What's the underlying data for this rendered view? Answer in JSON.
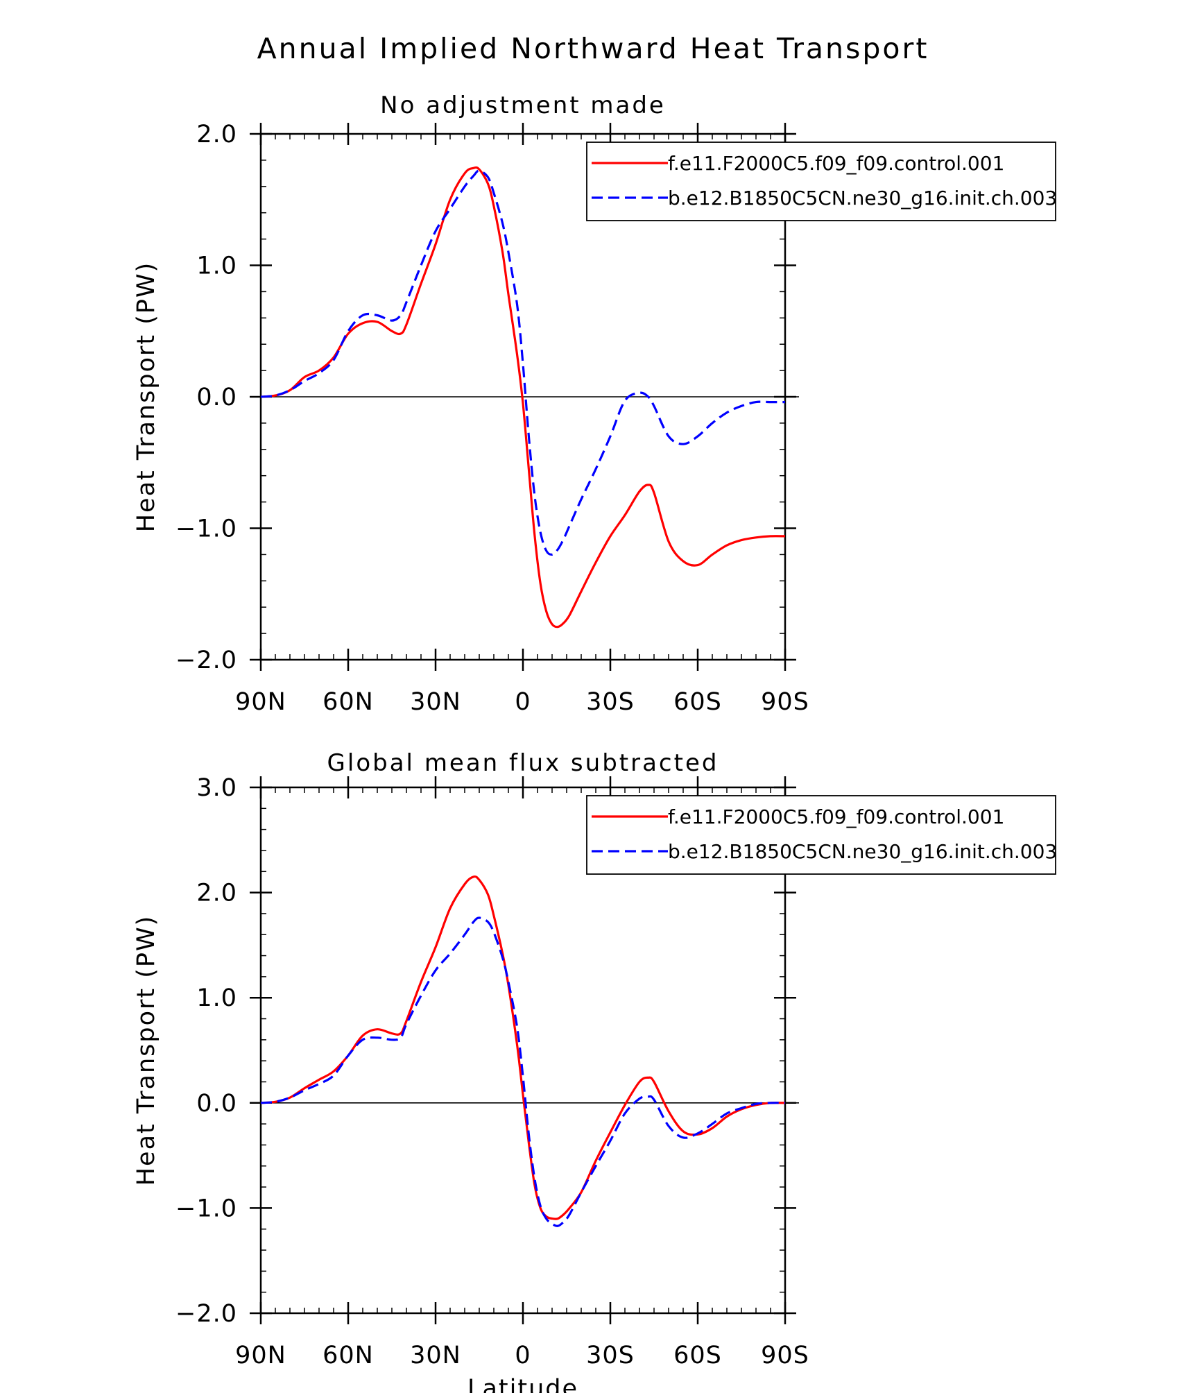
{
  "figure": {
    "title": "Annual Implied Northward Heat Transport"
  },
  "chart_data": [
    {
      "type": "line",
      "title": "No adjustment made",
      "xlabel": "",
      "ylabel": "Heat Transport (PW)",
      "xlim": [
        90,
        -90
      ],
      "ylim": [
        -2.0,
        2.0
      ],
      "x_ticks": [
        90,
        60,
        30,
        0,
        -30,
        -60,
        -90
      ],
      "x_tick_labels": [
        "90N",
        "60N",
        "30N",
        "0",
        "30S",
        "60S",
        "90S"
      ],
      "y_ticks": [
        -2.0,
        -1.0,
        0.0,
        1.0,
        2.0
      ],
      "y_tick_labels": [
        "−2.0",
        "−1.0",
        "0.0",
        "1.0",
        "2.0"
      ],
      "zero_line": true,
      "grid": false,
      "legend": "top-right",
      "series": [
        {
          "name": "f.e11.F2000C5.f09_f09.control.001",
          "color": "#ff0000",
          "dash": "solid",
          "x": [
            90,
            85,
            80,
            75,
            70,
            65,
            60,
            55,
            50,
            45,
            42,
            40,
            35,
            30,
            25,
            20,
            17,
            15,
            12,
            10,
            7,
            5,
            2,
            0,
            -2,
            -4,
            -6,
            -8,
            -10,
            -12,
            -14,
            -16,
            -20,
            -25,
            -30,
            -35,
            -40,
            -43,
            -45,
            -50,
            -55,
            -60,
            -65,
            -70,
            -75,
            -80,
            -85,
            -90
          ],
          "y": [
            0.0,
            0.01,
            0.05,
            0.15,
            0.2,
            0.3,
            0.48,
            0.56,
            0.57,
            0.5,
            0.48,
            0.55,
            0.86,
            1.16,
            1.5,
            1.7,
            1.74,
            1.73,
            1.62,
            1.45,
            1.1,
            0.78,
            0.32,
            -0.05,
            -0.55,
            -1.05,
            -1.42,
            -1.63,
            -1.73,
            -1.75,
            -1.72,
            -1.66,
            -1.48,
            -1.26,
            -1.06,
            -0.9,
            -0.72,
            -0.67,
            -0.73,
            -1.1,
            -1.25,
            -1.28,
            -1.2,
            -1.13,
            -1.09,
            -1.07,
            -1.06,
            -1.06
          ]
        },
        {
          "name": "b.e12.B1850C5CN.ne30_g16.init.ch.003",
          "color": "#0000ff",
          "dash": "dashed",
          "x": [
            90,
            85,
            80,
            75,
            70,
            65,
            60,
            55,
            50,
            45,
            42,
            40,
            35,
            30,
            25,
            20,
            17,
            15,
            12,
            10,
            7,
            5,
            2,
            0,
            -2,
            -4,
            -6,
            -8,
            -10,
            -12,
            -14,
            -16,
            -20,
            -25,
            -30,
            -35,
            -40,
            -43,
            -45,
            -50,
            -55,
            -60,
            -65,
            -70,
            -75,
            -80,
            -85,
            -90
          ],
          "y": [
            0.0,
            0.01,
            0.05,
            0.12,
            0.18,
            0.28,
            0.5,
            0.62,
            0.62,
            0.58,
            0.62,
            0.72,
            1.0,
            1.26,
            1.43,
            1.6,
            1.68,
            1.72,
            1.67,
            1.55,
            1.32,
            1.1,
            0.7,
            0.25,
            -0.3,
            -0.75,
            -1.03,
            -1.17,
            -1.2,
            -1.16,
            -1.08,
            -0.98,
            -0.78,
            -0.55,
            -0.3,
            -0.03,
            0.03,
            0.0,
            -0.07,
            -0.3,
            -0.36,
            -0.3,
            -0.2,
            -0.12,
            -0.07,
            -0.04,
            -0.04,
            -0.04
          ]
        }
      ]
    },
    {
      "type": "line",
      "title": "Global mean flux subtracted",
      "xlabel": "Latitude",
      "ylabel": "Heat Transport (PW)",
      "xlim": [
        90,
        -90
      ],
      "ylim": [
        -2.0,
        3.0
      ],
      "x_ticks": [
        90,
        60,
        30,
        0,
        -30,
        -60,
        -90
      ],
      "x_tick_labels": [
        "90N",
        "60N",
        "30N",
        "0",
        "30S",
        "60S",
        "90S"
      ],
      "y_ticks": [
        -2.0,
        -1.0,
        0.0,
        1.0,
        2.0,
        3.0
      ],
      "y_tick_labels": [
        "−2.0",
        "−1.0",
        "0.0",
        "1.0",
        "2.0",
        "3.0"
      ],
      "zero_line": true,
      "grid": false,
      "legend": "top-right",
      "series": [
        {
          "name": "f.e11.F2000C5.f09_f09.control.001",
          "color": "#ff0000",
          "dash": "solid",
          "x": [
            90,
            85,
            80,
            75,
            70,
            65,
            60,
            55,
            50,
            45,
            42,
            40,
            35,
            30,
            25,
            20,
            17,
            15,
            12,
            10,
            7,
            5,
            2,
            0,
            -2,
            -4,
            -6,
            -8,
            -10,
            -12,
            -14,
            -16,
            -20,
            -25,
            -30,
            -35,
            -40,
            -43,
            -45,
            -50,
            -55,
            -60,
            -65,
            -70,
            -75,
            -80,
            -85,
            -90
          ],
          "y": [
            0.0,
            0.01,
            0.05,
            0.14,
            0.22,
            0.3,
            0.45,
            0.64,
            0.7,
            0.66,
            0.66,
            0.78,
            1.15,
            1.48,
            1.85,
            2.08,
            2.15,
            2.12,
            1.98,
            1.78,
            1.42,
            1.12,
            0.55,
            0.08,
            -0.38,
            -0.78,
            -1.0,
            -1.08,
            -1.1,
            -1.1,
            -1.06,
            -1.0,
            -0.85,
            -0.55,
            -0.28,
            -0.02,
            0.2,
            0.24,
            0.2,
            -0.08,
            -0.27,
            -0.3,
            -0.24,
            -0.13,
            -0.06,
            -0.02,
            0.0,
            0.0
          ]
        },
        {
          "name": "b.e12.B1850C5CN.ne30_g16.init.ch.003",
          "color": "#0000ff",
          "dash": "dashed",
          "x": [
            90,
            85,
            80,
            75,
            70,
            65,
            60,
            55,
            50,
            45,
            42,
            40,
            35,
            30,
            25,
            20,
            17,
            15,
            12,
            10,
            7,
            5,
            2,
            0,
            -2,
            -4,
            -6,
            -8,
            -10,
            -12,
            -14,
            -16,
            -20,
            -25,
            -30,
            -35,
            -40,
            -43,
            -45,
            -50,
            -55,
            -60,
            -65,
            -70,
            -75,
            -80,
            -85,
            -90
          ],
          "y": [
            0.0,
            0.01,
            0.05,
            0.12,
            0.18,
            0.26,
            0.45,
            0.6,
            0.62,
            0.6,
            0.62,
            0.75,
            1.02,
            1.26,
            1.42,
            1.6,
            1.72,
            1.76,
            1.72,
            1.62,
            1.38,
            1.15,
            0.72,
            0.25,
            -0.3,
            -0.72,
            -0.98,
            -1.1,
            -1.15,
            -1.17,
            -1.13,
            -1.06,
            -0.85,
            -0.6,
            -0.36,
            -0.1,
            0.04,
            0.06,
            0.03,
            -0.22,
            -0.33,
            -0.29,
            -0.2,
            -0.1,
            -0.05,
            -0.01,
            0.0,
            0.0
          ]
        }
      ]
    }
  ]
}
